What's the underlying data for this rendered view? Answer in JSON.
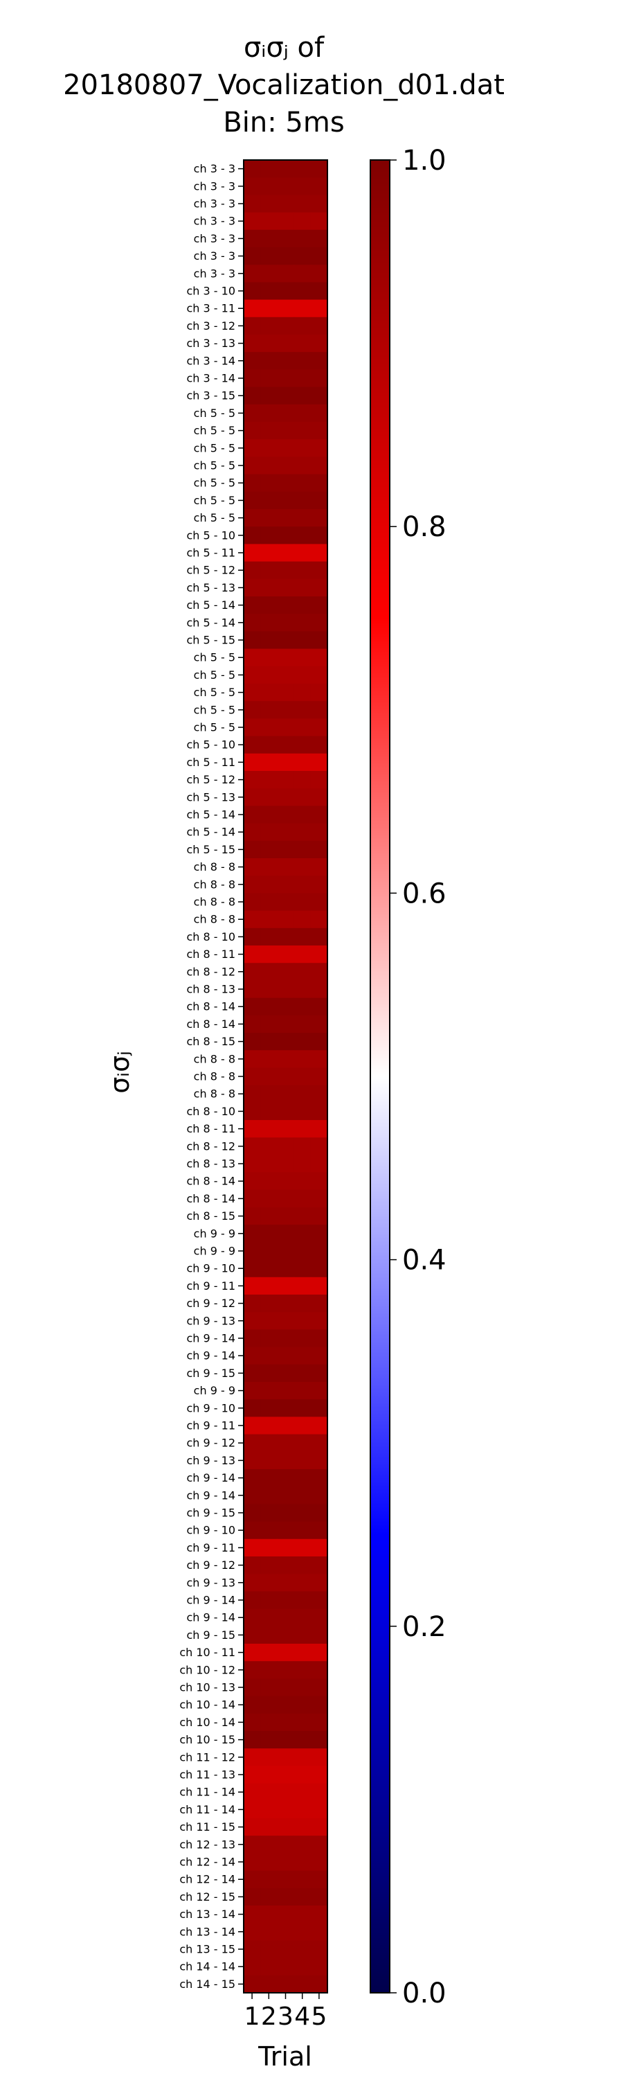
{
  "chart_data": {
    "type": "heatmap",
    "title_lines": [
      "σᵢσⱼ of",
      "20180807_Vocalization_d01.dat",
      "Bin: 5ms"
    ],
    "xlabel": "Trial",
    "ylabel": "σᵢσⱼ",
    "x": [
      "1",
      "2",
      "3",
      "4",
      "5"
    ],
    "y": [
      "ch  3 -  3",
      "ch  3 -  3",
      "ch  3 -  3",
      "ch  3 -  3",
      "ch  3 -  3",
      "ch  3 -  3",
      "ch  3 -  3",
      "ch  3 - 10",
      "ch  3 - 11",
      "ch  3 - 12",
      "ch  3 - 13",
      "ch  3 - 14",
      "ch  3 - 14",
      "ch  3 - 15",
      "ch  5 -  5",
      "ch  5 -  5",
      "ch  5 -  5",
      "ch  5 -  5",
      "ch  5 -  5",
      "ch  5 -  5",
      "ch  5 -  5",
      "ch  5 - 10",
      "ch  5 - 11",
      "ch  5 - 12",
      "ch  5 - 13",
      "ch  5 - 14",
      "ch  5 - 14",
      "ch  5 - 15",
      "ch  5 -  5",
      "ch  5 -  5",
      "ch  5 -  5",
      "ch  5 -  5",
      "ch  5 -  5",
      "ch  5 - 10",
      "ch  5 - 11",
      "ch  5 - 12",
      "ch  5 - 13",
      "ch  5 - 14",
      "ch  5 - 14",
      "ch  5 - 15",
      "ch  8 -  8",
      "ch  8 -  8",
      "ch  8 -  8",
      "ch  8 -  8",
      "ch  8 - 10",
      "ch  8 - 11",
      "ch  8 - 12",
      "ch  8 - 13",
      "ch  8 - 14",
      "ch  8 - 14",
      "ch  8 - 15",
      "ch  8 -  8",
      "ch  8 -  8",
      "ch  8 -  8",
      "ch  8 - 10",
      "ch  8 - 11",
      "ch  8 - 12",
      "ch  8 - 13",
      "ch  8 - 14",
      "ch  8 - 14",
      "ch  8 - 15",
      "ch  9 -  9",
      "ch  9 -  9",
      "ch  9 - 10",
      "ch  9 - 11",
      "ch  9 - 12",
      "ch  9 - 13",
      "ch  9 - 14",
      "ch  9 - 14",
      "ch  9 - 15",
      "ch  9 -  9",
      "ch  9 - 10",
      "ch  9 - 11",
      "ch  9 - 12",
      "ch  9 - 13",
      "ch  9 - 14",
      "ch  9 - 14",
      "ch  9 - 15",
      "ch  9 - 10",
      "ch  9 - 11",
      "ch  9 - 12",
      "ch  9 - 13",
      "ch  9 - 14",
      "ch  9 - 14",
      "ch  9 - 15",
      "ch 10 - 11",
      "ch 10 - 12",
      "ch 10 - 13",
      "ch 10 - 14",
      "ch 10 - 14",
      "ch 10 - 15",
      "ch 11 - 12",
      "ch 11 - 13",
      "ch 11 - 14",
      "ch 11 - 14",
      "ch 11 - 15",
      "ch 12 - 13",
      "ch 12 - 14",
      "ch 12 - 14",
      "ch 12 - 15",
      "ch 13 - 14",
      "ch 13 - 14",
      "ch 13 - 15",
      "ch 14 - 14",
      "ch 14 - 15"
    ],
    "row_values": [
      0.97,
      0.96,
      0.95,
      0.92,
      0.98,
      0.99,
      0.96,
      0.99,
      0.82,
      0.95,
      0.94,
      0.98,
      0.97,
      0.99,
      0.96,
      0.95,
      0.93,
      0.94,
      0.97,
      0.98,
      0.96,
      0.99,
      0.82,
      0.95,
      0.94,
      0.98,
      0.97,
      0.99,
      0.9,
      0.91,
      0.92,
      0.95,
      0.93,
      0.96,
      0.83,
      0.92,
      0.93,
      0.96,
      0.95,
      0.97,
      0.93,
      0.94,
      0.95,
      0.92,
      0.97,
      0.84,
      0.94,
      0.94,
      0.98,
      0.97,
      0.99,
      0.93,
      0.94,
      0.95,
      0.95,
      0.85,
      0.92,
      0.92,
      0.93,
      0.94,
      0.95,
      0.98,
      0.98,
      0.98,
      0.83,
      0.95,
      0.94,
      0.97,
      0.96,
      0.98,
      0.96,
      0.99,
      0.84,
      0.94,
      0.94,
      0.98,
      0.98,
      0.99,
      0.98,
      0.83,
      0.95,
      0.94,
      0.97,
      0.96,
      0.96,
      0.84,
      0.96,
      0.97,
      0.98,
      0.97,
      0.99,
      0.85,
      0.84,
      0.85,
      0.85,
      0.86,
      0.94,
      0.94,
      0.96,
      0.97,
      0.94,
      0.94,
      0.95,
      0.95,
      0.96
    ],
    "colorbar": {
      "min": 0.0,
      "max": 1.0,
      "ticks": [
        "0.0",
        "0.2",
        "0.4",
        "0.6",
        "0.8",
        "1.0"
      ]
    },
    "colormap": {
      "name": "seismic",
      "stops": [
        {
          "v": 0.0,
          "color": "#00004c"
        },
        {
          "v": 0.25,
          "color": "#0000ff"
        },
        {
          "v": 0.5,
          "color": "#ffffff"
        },
        {
          "v": 0.75,
          "color": "#ff0000"
        },
        {
          "v": 1.0,
          "color": "#800000"
        }
      ]
    }
  }
}
